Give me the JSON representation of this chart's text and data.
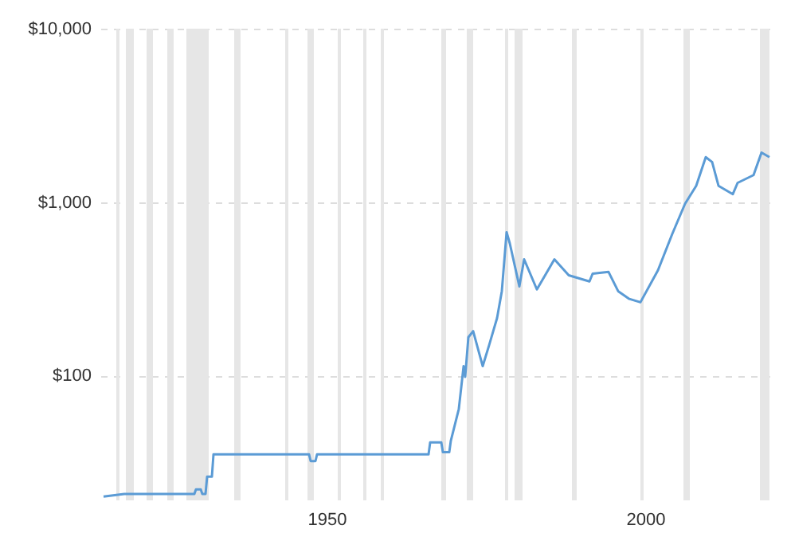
{
  "chart_data": {
    "type": "line",
    "x": [
      1915,
      1918.25,
      1929.25,
      1929.5,
      1930.25,
      1930.5,
      1931,
      1931.25,
      1932,
      1932.25,
      1947.25,
      1947.5,
      1948.25,
      1948.5,
      1966,
      1966.25,
      1968,
      1968.25,
      1969.25,
      1969.5,
      1970.75,
      1971.5,
      1971.75,
      1972.25,
      1973,
      1974.5,
      1975.5,
      1976.75,
      1977.5,
      1978.25,
      1978.75,
      1980.25,
      1981,
      1983,
      1985.75,
      1988,
      1991.25,
      1991.75,
      1994.25,
      1995.75,
      1997.5,
      1999.25,
      2002,
      2004.25,
      2006.25,
      2008,
      2009.5,
      2010.5,
      2011.5,
      2013.75,
      2014.5,
      2017,
      2018.25,
      2019.5
    ],
    "series": [
      {
        "color": "#5b9bd5",
        "values": [
          20,
          20.7,
          20.7,
          22,
          22,
          20.7,
          20.7,
          26,
          26,
          35,
          35,
          32,
          32,
          35,
          35,
          41,
          41,
          36,
          36,
          42,
          64,
          113,
          98,
          166,
          180,
          113,
          149,
          214,
          306,
          670,
          577,
          326,
          467,
          313,
          467,
          378,
          348,
          386,
          395,
          306,
          276,
          264,
          404,
          655,
          977,
          1240,
          1815,
          1700,
          1240,
          1110,
          1290,
          1430,
          1930,
          1815
        ]
      }
    ],
    "xlim": [
      1914.5,
      2019.5
    ],
    "xticks": [
      1950,
      2000
    ],
    "ylim": [
      19,
      10000
    ],
    "log": true,
    "yticks": [
      {
        "value": 100,
        "label": "$100"
      },
      {
        "value": 1000,
        "label": "$1,000"
      },
      {
        "value": 10000,
        "label": "$10,000"
      }
    ],
    "grid": "y",
    "bands": [
      {
        "axis": "x",
        "from": 1917,
        "to": 1917.5,
        "color": "#e6e6e6"
      },
      {
        "axis": "x",
        "from": 1918.5,
        "to": 1919.75,
        "color": "#e6e6e6"
      },
      {
        "axis": "x",
        "from": 1921.75,
        "to": 1922.75,
        "color": "#e6e6e6"
      },
      {
        "axis": "x",
        "from": 1925,
        "to": 1926,
        "color": "#e6e6e6"
      },
      {
        "axis": "x",
        "from": 1928,
        "to": 1931.5,
        "color": "#e6e6e6"
      },
      {
        "axis": "x",
        "from": 1935.5,
        "to": 1936.5,
        "color": "#e6e6e6"
      },
      {
        "axis": "x",
        "from": 1943.5,
        "to": 1944,
        "color": "#e6e6e6"
      },
      {
        "axis": "x",
        "from": 1947,
        "to": 1948,
        "color": "#e6e6e6"
      },
      {
        "axis": "x",
        "from": 1951.75,
        "to": 1952.25,
        "color": "#e6e6e6"
      },
      {
        "axis": "x",
        "from": 1955.75,
        "to": 1956.25,
        "color": "#e6e6e6"
      },
      {
        "axis": "x",
        "from": 1958.5,
        "to": 1959,
        "color": "#e6e6e6"
      },
      {
        "axis": "x",
        "from": 1968,
        "to": 1968.75,
        "color": "#e6e6e6"
      },
      {
        "axis": "x",
        "from": 1972,
        "to": 1973,
        "color": "#e6e6e6"
      },
      {
        "axis": "x",
        "from": 1978,
        "to": 1978.5,
        "color": "#e6e6e6"
      },
      {
        "axis": "x",
        "from": 1979.5,
        "to": 1980.75,
        "color": "#e6e6e6"
      },
      {
        "axis": "x",
        "from": 1988.5,
        "to": 1989.25,
        "color": "#e6e6e6"
      },
      {
        "axis": "x",
        "from": 1999.25,
        "to": 1999.75,
        "color": "#e6e6e6"
      },
      {
        "axis": "x",
        "from": 2006,
        "to": 2007,
        "color": "#e6e6e6"
      },
      {
        "axis": "x",
        "from": 2018,
        "to": 2019.5,
        "color": "#e6e6e6"
      }
    ]
  }
}
